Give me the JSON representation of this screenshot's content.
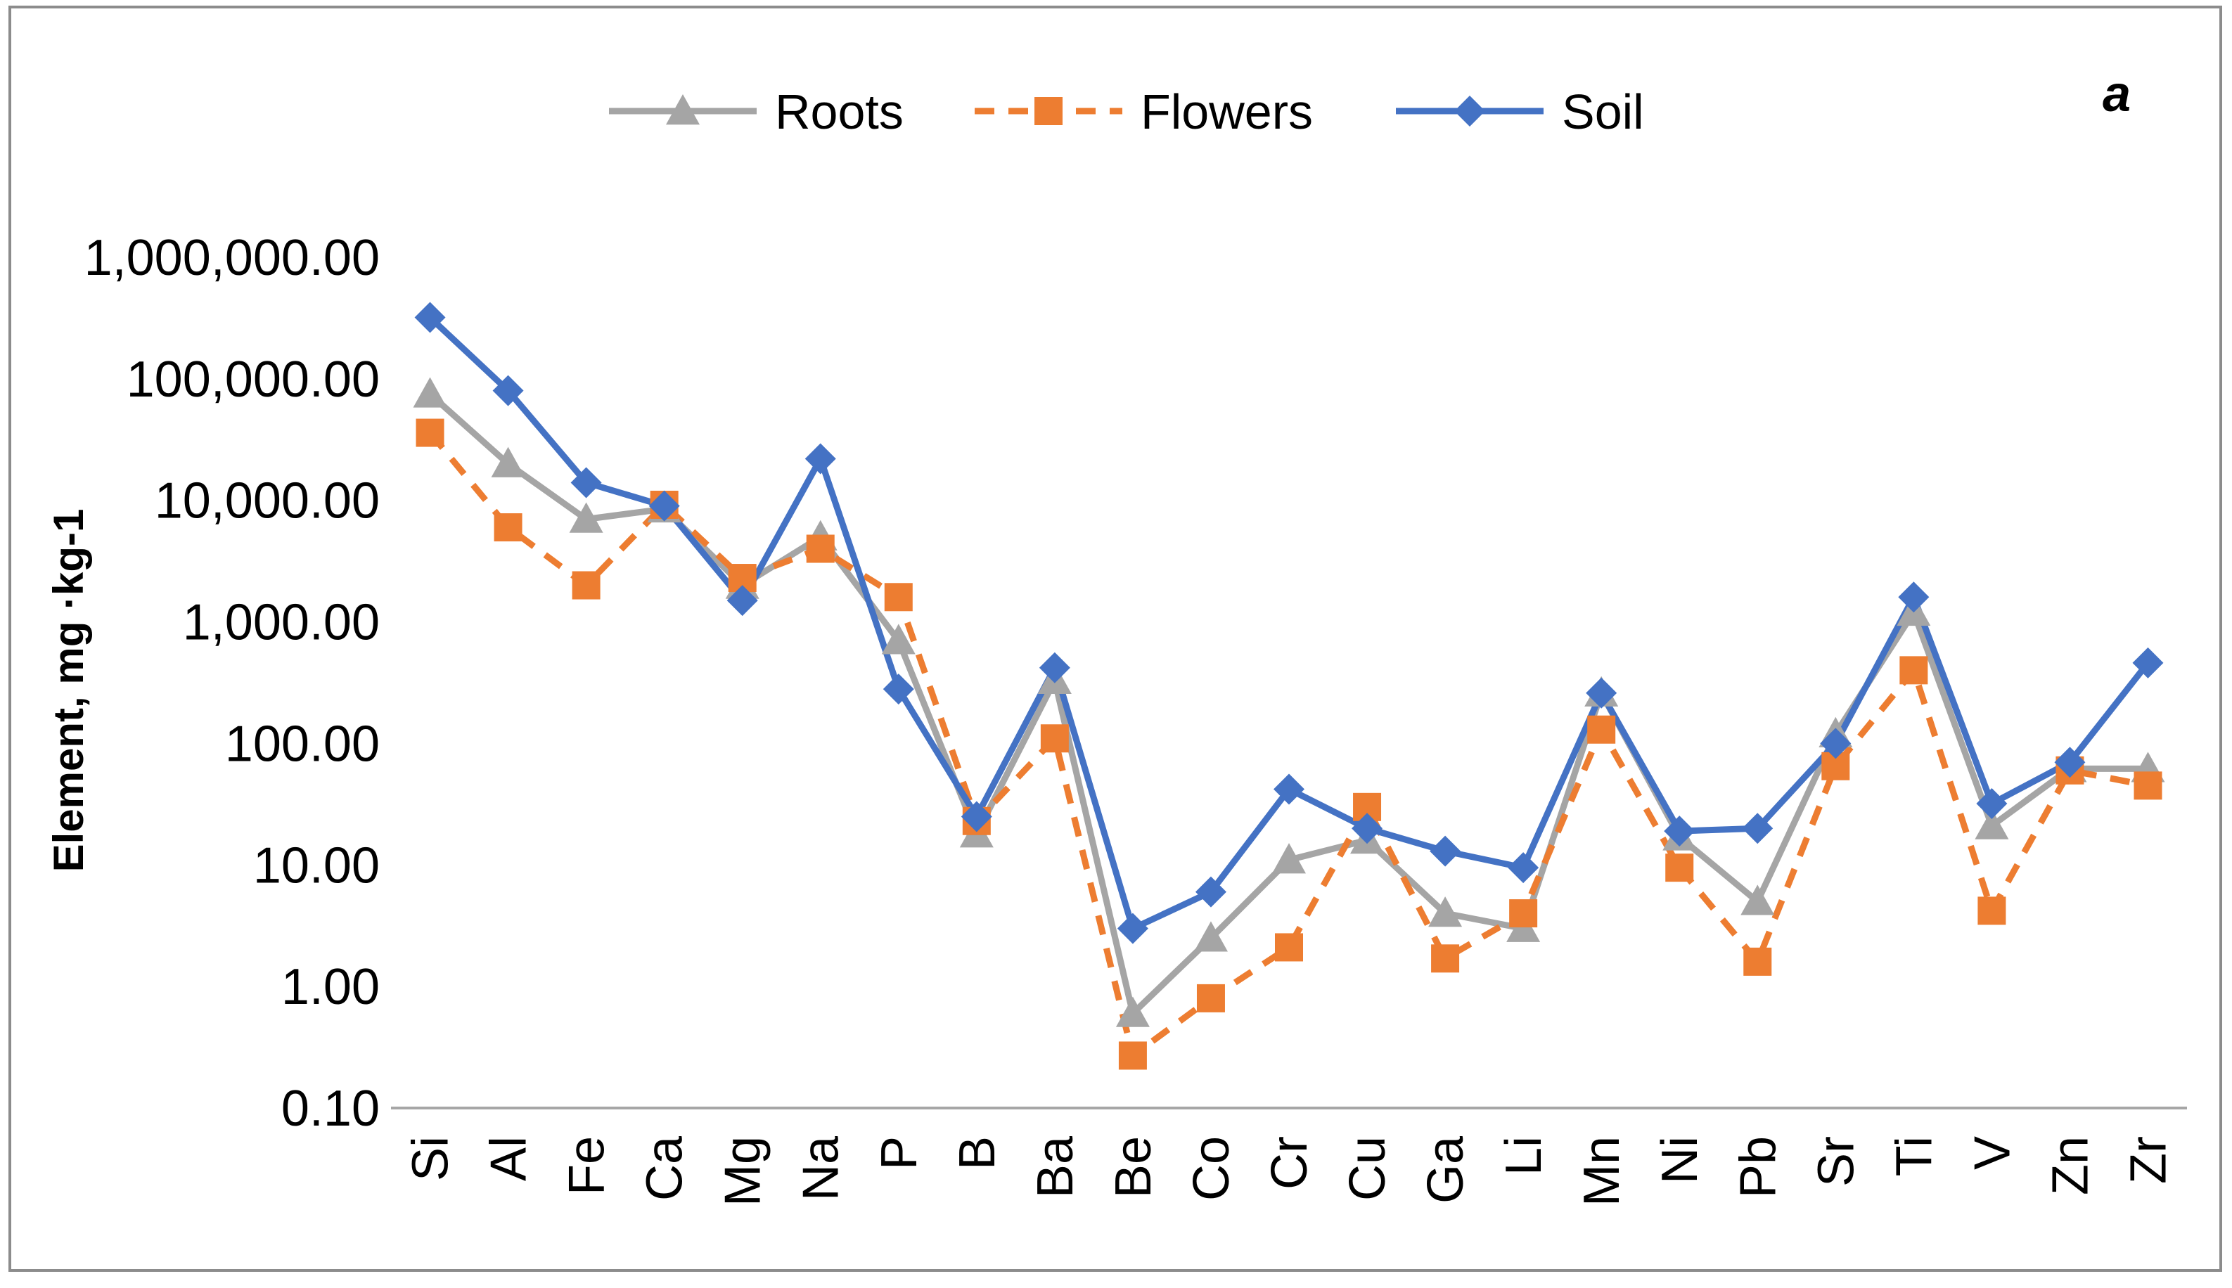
{
  "chart_data": {
    "type": "line",
    "title": "",
    "panel_letter": "a",
    "ylabel": "Element, mg ·kg-1",
    "xlabel": "",
    "yscale": "log",
    "ylim": [
      0.1,
      1000000
    ],
    "y_ticks": [
      0.1,
      1,
      10,
      100,
      1000,
      10000,
      100000,
      1000000
    ],
    "y_tick_labels": [
      "0.10",
      "1.00",
      "10.00",
      "100.00",
      "1,000.00",
      "10,000.00",
      "100,000.00",
      "1,000,000.00"
    ],
    "grid": false,
    "legend_position": "top",
    "categories": [
      "Si",
      "Al",
      "Fe",
      "Ca",
      "Mg",
      "Na",
      "P",
      "B",
      "Ba",
      "Be",
      "Co",
      "Cr",
      "Cu",
      "Ga",
      "Li",
      "Mn",
      "Ni",
      "Pb",
      "Sr",
      "Ti",
      "V",
      "Zn",
      "Zr"
    ],
    "series": [
      {
        "name": "Roots",
        "color": "#a5a5a5",
        "marker": "triangle",
        "dash": "solid",
        "values": [
          75000,
          20000,
          7000,
          8500,
          2000,
          5000,
          700,
          18,
          330,
          0.6,
          2.5,
          11,
          16,
          4,
          3,
          260,
          17,
          5,
          120,
          1200,
          21,
          62,
          62
        ]
      },
      {
        "name": "Flowers",
        "color": "#ed7d31",
        "marker": "square",
        "dash": "dashed",
        "values": [
          36000,
          6000,
          2000,
          9200,
          2300,
          4000,
          1600,
          23,
          110,
          0.27,
          0.8,
          2.1,
          30,
          1.7,
          4,
          130,
          9.5,
          1.6,
          65,
          400,
          4.2,
          60,
          45
        ]
      },
      {
        "name": "Soil",
        "color": "#4472c4",
        "marker": "diamond",
        "dash": "solid",
        "values": [
          320000,
          80000,
          14000,
          9000,
          1500,
          22000,
          280,
          25,
          420,
          3,
          6,
          42,
          20,
          13,
          9.5,
          260,
          19,
          20,
          100,
          1600,
          32,
          70,
          460
        ]
      }
    ]
  }
}
